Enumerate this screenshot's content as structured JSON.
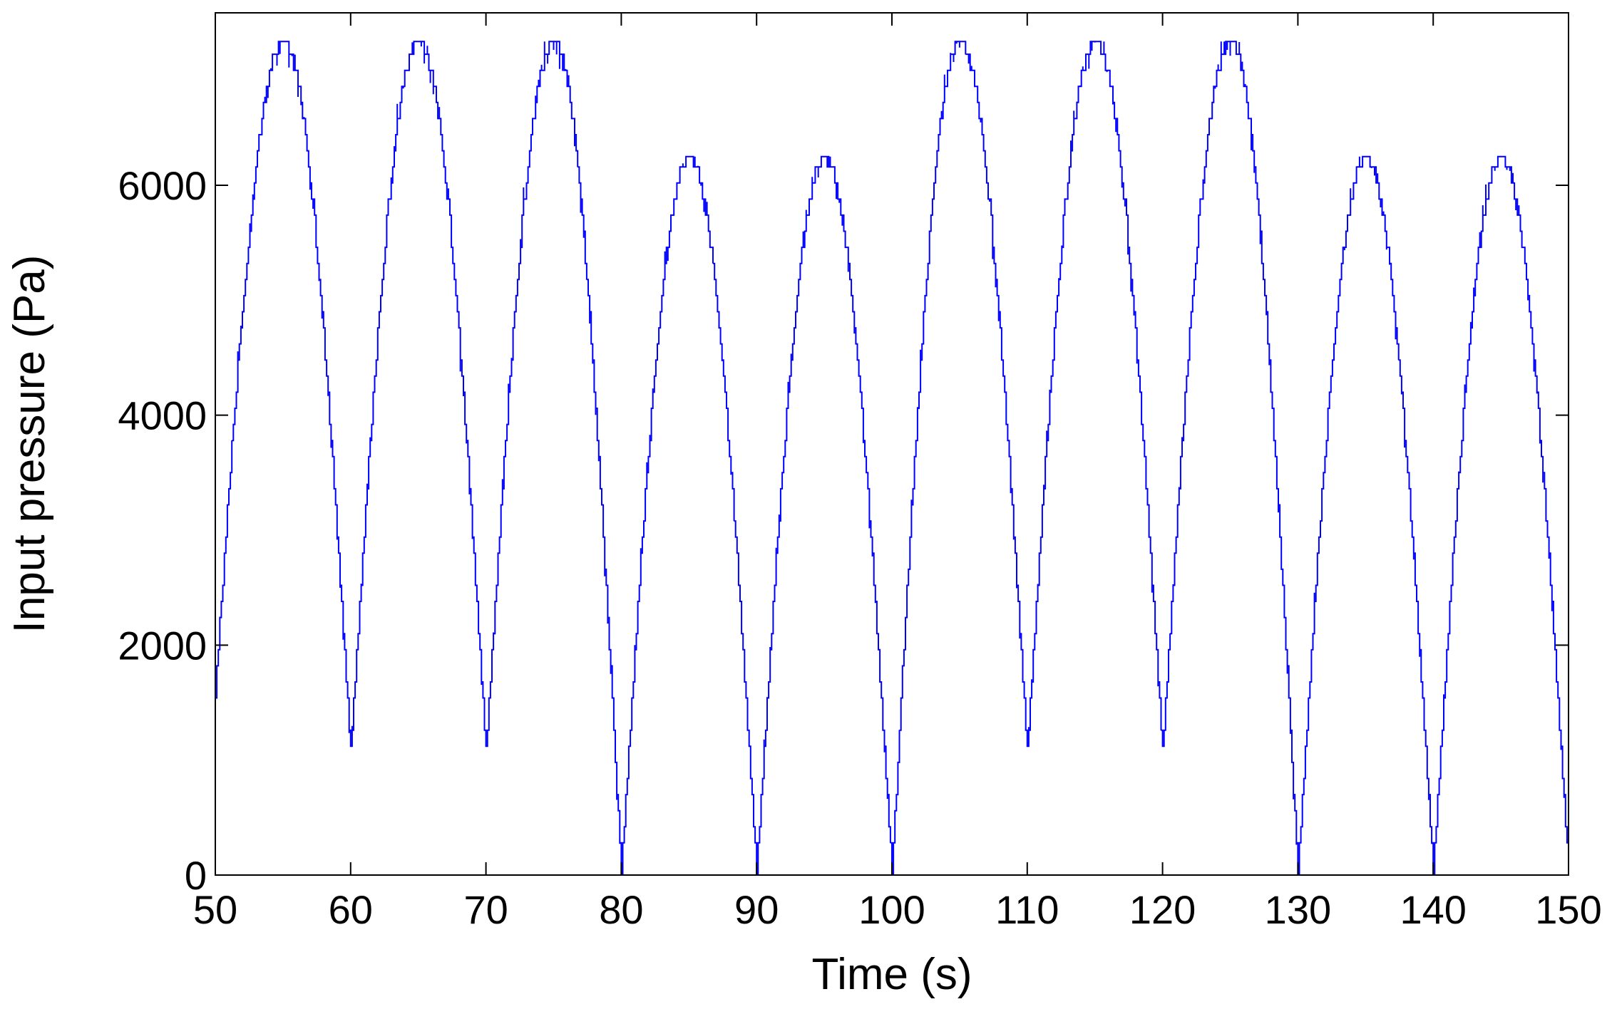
{
  "chart_data": {
    "type": "line",
    "title": "",
    "xlabel": "Time (s)",
    "ylabel": "Input pressure (Pa)",
    "xlim": [
      50,
      150
    ],
    "ylim": [
      0,
      7500
    ],
    "xticks": [
      50,
      60,
      70,
      80,
      90,
      100,
      110,
      120,
      130,
      140,
      150
    ],
    "yticks": [
      0,
      2000,
      4000,
      6000
    ],
    "grid": false,
    "legend": "none",
    "line_color": "#0000ff",
    "series": [
      {
        "cycles": [
          {
            "t0": 50,
            "t1": 60,
            "min_start": 1600,
            "max": 7250,
            "min_end": 1100
          },
          {
            "t0": 60,
            "t1": 70,
            "min_start": 1100,
            "max": 7250,
            "min_end": 1100
          },
          {
            "t0": 70,
            "t1": 80,
            "min_start": 1100,
            "max": 7250,
            "min_end": 0
          },
          {
            "t0": 80,
            "t1": 90,
            "min_start": 0,
            "max": 6250,
            "min_end": 0
          },
          {
            "t0": 90,
            "t1": 100,
            "min_start": 0,
            "max": 6250,
            "min_end": 0
          },
          {
            "t0": 100,
            "t1": 110,
            "min_start": 0,
            "max": 7250,
            "min_end": 1100
          },
          {
            "t0": 110,
            "t1": 120,
            "min_start": 1100,
            "max": 7250,
            "min_end": 1100
          },
          {
            "t0": 120,
            "t1": 130,
            "min_start": 1100,
            "max": 7250,
            "min_end": 0
          },
          {
            "t0": 130,
            "t1": 140,
            "min_start": 0,
            "max": 6250,
            "min_end": 0
          },
          {
            "t0": 140,
            "t1": 150,
            "min_start": 0,
            "max": 6250,
            "min_end": 0
          }
        ]
      }
    ]
  }
}
